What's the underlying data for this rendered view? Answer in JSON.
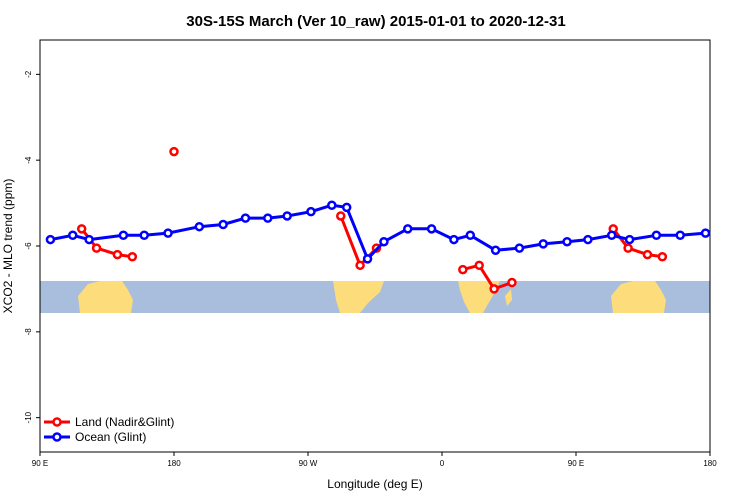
{
  "chart_data": {
    "type": "line",
    "title": "30S-15S March (Ver 10_raw)   2015-01-01 to 2020-12-31",
    "xlabel": "Longitude (deg E)",
    "ylabel": "XCO2 - MLO trend (ppm)",
    "xlim": [
      90,
      540
    ],
    "ylim": [
      -10.8,
      -1.2
    ],
    "x_ticks": [
      {
        "value": 90,
        "label": "90 E"
      },
      {
        "value": 180,
        "label": "180"
      },
      {
        "value": 270,
        "label": "90 W"
      },
      {
        "value": 360,
        "label": "0"
      },
      {
        "value": 450,
        "label": "90 E"
      },
      {
        "value": 540,
        "label": "180"
      }
    ],
    "y_ticks": [
      -2,
      -4,
      -6,
      -8,
      -10
    ],
    "legend_position": "bottom-left",
    "series": [
      {
        "name": "Land (Nadir&Glint)",
        "color": "#ff0000",
        "segments": [
          [
            [
              118,
              -5.6
            ],
            [
              128,
              -6.05
            ],
            [
              142,
              -6.2
            ],
            [
              152,
              -6.25
            ]
          ],
          [
            [
              180,
              -3.8
            ]
          ],
          [
            [
              292,
              -5.3
            ],
            [
              305,
              -6.45
            ],
            [
              316,
              -6.05
            ]
          ],
          [
            [
              374,
              -6.55
            ],
            [
              385,
              -6.45
            ],
            [
              395,
              -7.0
            ],
            [
              407,
              -6.85
            ]
          ],
          [
            [
              475,
              -5.6
            ],
            [
              485,
              -6.05
            ],
            [
              498,
              -6.2
            ],
            [
              508,
              -6.25
            ]
          ]
        ]
      },
      {
        "name": "Ocean (Glint)",
        "color": "#0000ff",
        "segments": [
          [
            [
              97,
              -5.85
            ],
            [
              112,
              -5.75
            ],
            [
              123,
              -5.85
            ],
            [
              146,
              -5.75
            ],
            [
              160,
              -5.75
            ],
            [
              176,
              -5.7
            ],
            [
              197,
              -5.55
            ],
            [
              213,
              -5.5
            ],
            [
              228,
              -5.35
            ],
            [
              243,
              -5.35
            ],
            [
              256,
              -5.3
            ],
            [
              272,
              -5.2
            ],
            [
              286,
              -5.05
            ],
            [
              296,
              -5.1
            ],
            [
              310,
              -6.3
            ],
            [
              321,
              -5.9
            ],
            [
              337,
              -5.6
            ],
            [
              353,
              -5.6
            ],
            [
              368,
              -5.85
            ],
            [
              379,
              -5.75
            ],
            [
              396,
              -6.1
            ],
            [
              412,
              -6.05
            ],
            [
              428,
              -5.95
            ],
            [
              444,
              -5.9
            ],
            [
              458,
              -5.85
            ],
            [
              474,
              -5.75
            ],
            [
              486,
              -5.85
            ],
            [
              504,
              -5.75
            ],
            [
              520,
              -5.75
            ],
            [
              537,
              -5.7
            ]
          ]
        ]
      }
    ]
  }
}
